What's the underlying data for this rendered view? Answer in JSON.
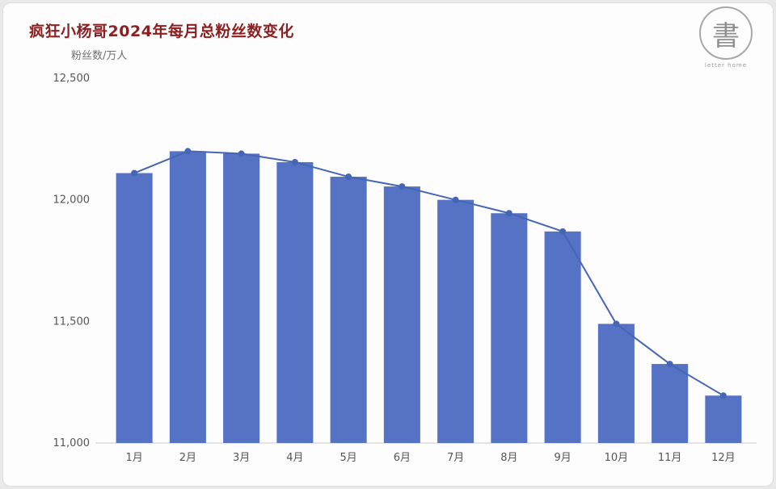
{
  "header": {
    "title": "疯狂小杨哥2024年每月总粉丝数变化",
    "y_axis_unit": "粉丝数/万人"
  },
  "logo": {
    "glyph": "書",
    "caption": "letter home"
  },
  "chart_data": {
    "type": "bar",
    "subtype": "bar-with-line-overlay",
    "title": "疯狂小杨哥2024年每月总粉丝数变化",
    "xlabel": "",
    "ylabel": "粉丝数/万人",
    "categories": [
      "1月",
      "2月",
      "3月",
      "4月",
      "5月",
      "6月",
      "7月",
      "8月",
      "9月",
      "10月",
      "11月",
      "12月"
    ],
    "values": [
      12110,
      12200,
      12190,
      12155,
      12095,
      12055,
      12000,
      11945,
      11870,
      11490,
      11325,
      11195
    ],
    "ylim": [
      11000,
      12500
    ],
    "yticks": [
      11000,
      11500,
      12000,
      12500
    ],
    "grid": false,
    "legend_position": "none",
    "bar_color": "#5572c4",
    "line_color": "#4565b5",
    "marker_color": "#4565b5",
    "axis_color": "#cccccc",
    "tick_text_color": "#555555"
  }
}
